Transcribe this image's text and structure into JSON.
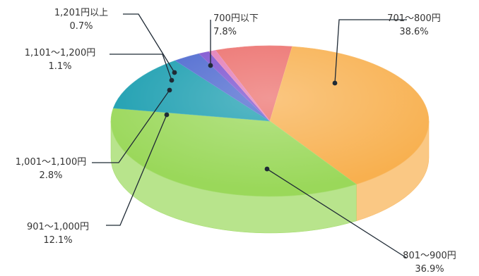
{
  "chart_data": {
    "type": "pie",
    "title": "",
    "slices": [
      {
        "name": "700円以下",
        "pct_label": "7.8%",
        "value": 7.8,
        "color": "#ec6f6c"
      },
      {
        "name": "701～800円",
        "pct_label": "38.6%",
        "value": 38.6,
        "color": "#f8b04f"
      },
      {
        "name": "801～900円",
        "pct_label": "36.9%",
        "value": 36.9,
        "color": "#9ad85a"
      },
      {
        "name": "901～1,000円",
        "pct_label": "12.1%",
        "value": 12.1,
        "color": "#1b9eb0"
      },
      {
        "name": "1,001～1,100円",
        "pct_label": "2.8%",
        "value": 2.8,
        "color": "#4b67cf"
      },
      {
        "name": "1,101～1,200円",
        "pct_label": "1.1%",
        "value": 1.1,
        "color": "#7b4fcf"
      },
      {
        "name": "1,201円以上",
        "pct_label": "0.7%",
        "value": 0.7,
        "color": "#e27bb6"
      }
    ]
  }
}
